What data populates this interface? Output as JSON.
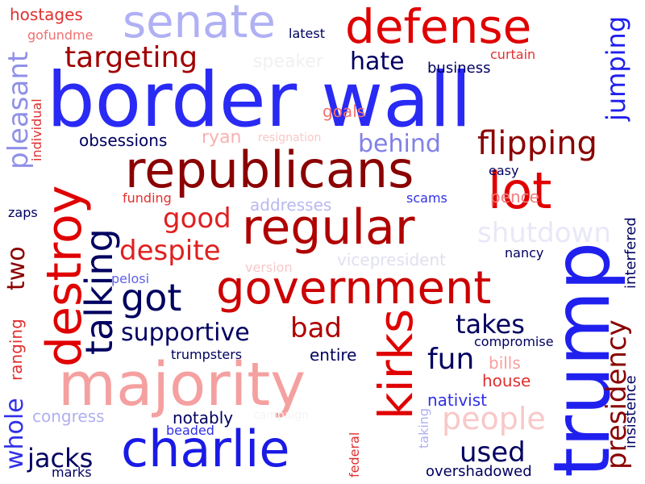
{
  "words": [
    {
      "text": "border wall",
      "color": "#2a2af5"
    },
    {
      "text": "republicans",
      "color": "#8b0000"
    },
    {
      "text": "majority",
      "color": "#f5a0a0"
    },
    {
      "text": "government",
      "color": "#cc0000"
    },
    {
      "text": "charlie",
      "color": "#1a1ae6"
    },
    {
      "text": "trump",
      "color": "#2020ee"
    },
    {
      "text": "senate",
      "color": "#b0b0f5"
    },
    {
      "text": "defense",
      "color": "#e00000"
    },
    {
      "text": "regular",
      "color": "#b00000"
    },
    {
      "text": "lot",
      "color": "#e00000"
    },
    {
      "text": "destroy",
      "color": "#e00000"
    },
    {
      "text": "kirks",
      "color": "#e00000"
    },
    {
      "text": "talking",
      "color": "#000060"
    },
    {
      "text": "got",
      "color": "#000060"
    },
    {
      "text": "flipping",
      "color": "#8b0000"
    },
    {
      "text": "targeting",
      "color": "#a00000"
    },
    {
      "text": "good",
      "color": "#e02020"
    },
    {
      "text": "despite",
      "color": "#e02020"
    },
    {
      "text": "supportive",
      "color": "#000060"
    },
    {
      "text": "bad",
      "color": "#b00000"
    },
    {
      "text": "people",
      "color": "#f8c8c8"
    },
    {
      "text": "used",
      "color": "#000060"
    },
    {
      "text": "fun",
      "color": "#000060"
    },
    {
      "text": "takes",
      "color": "#000060"
    },
    {
      "text": "shutdown",
      "color": "#e8e8f8"
    },
    {
      "text": "pleasant",
      "color": "#9090e8"
    },
    {
      "text": "presidency",
      "color": "#8b0000"
    },
    {
      "text": "jumping",
      "color": "#2020ee"
    },
    {
      "text": "behind",
      "color": "#8080e8"
    },
    {
      "text": "hate",
      "color": "#000060"
    },
    {
      "text": "two",
      "color": "#8b0000"
    },
    {
      "text": "whole",
      "color": "#3030e8"
    },
    {
      "text": "jacks",
      "color": "#000060"
    },
    {
      "text": "hostages",
      "color": "#e03030"
    },
    {
      "text": "gofundme",
      "color": "#f07070"
    },
    {
      "text": "latest",
      "color": "#000060"
    },
    {
      "text": "speaker",
      "color": "#f0f0f0"
    },
    {
      "text": "curtain",
      "color": "#e03030"
    },
    {
      "text": "business",
      "color": "#000060"
    },
    {
      "text": "goals",
      "color": "#f07070"
    },
    {
      "text": "individual",
      "color": "#e03030"
    },
    {
      "text": "obsessions",
      "color": "#000060"
    },
    {
      "text": "ryan",
      "color": "#f8b0b0"
    },
    {
      "text": "resignation",
      "color": "#f8c8c8"
    },
    {
      "text": "easy",
      "color": "#000060"
    },
    {
      "text": "interfered",
      "color": "#000060"
    },
    {
      "text": "funding",
      "color": "#e03030"
    },
    {
      "text": "addresses",
      "color": "#b8b8f0"
    },
    {
      "text": "scams",
      "color": "#3030e8"
    },
    {
      "text": "pence",
      "color": "#f08080"
    },
    {
      "text": "zaps",
      "color": "#000060"
    },
    {
      "text": "vicepresident",
      "color": "#e0e0f0"
    },
    {
      "text": "nancy",
      "color": "#000060"
    },
    {
      "text": "version",
      "color": "#f8c8c8"
    },
    {
      "text": "pelosi",
      "color": "#6060e8"
    },
    {
      "text": "ranging",
      "color": "#e03030"
    },
    {
      "text": "trumpsters",
      "color": "#000060"
    },
    {
      "text": "entire",
      "color": "#000060"
    },
    {
      "text": "compromise",
      "color": "#000060"
    },
    {
      "text": "bills",
      "color": "#f8a0a0"
    },
    {
      "text": "house",
      "color": "#e03030"
    },
    {
      "text": "nativist",
      "color": "#3030e8"
    },
    {
      "text": "insistence",
      "color": "#000060"
    },
    {
      "text": "taking",
      "color": "#b0b0f0"
    },
    {
      "text": "congress",
      "color": "#b0b0f0"
    },
    {
      "text": "notably",
      "color": "#000060"
    },
    {
      "text": "campaign",
      "color": "#f4f4f4"
    },
    {
      "text": "beaded",
      "color": "#3030e8"
    },
    {
      "text": "federal",
      "color": "#e03030"
    },
    {
      "text": "overshadowed",
      "color": "#000060"
    },
    {
      "text": "marks",
      "color": "#000060"
    }
  ]
}
